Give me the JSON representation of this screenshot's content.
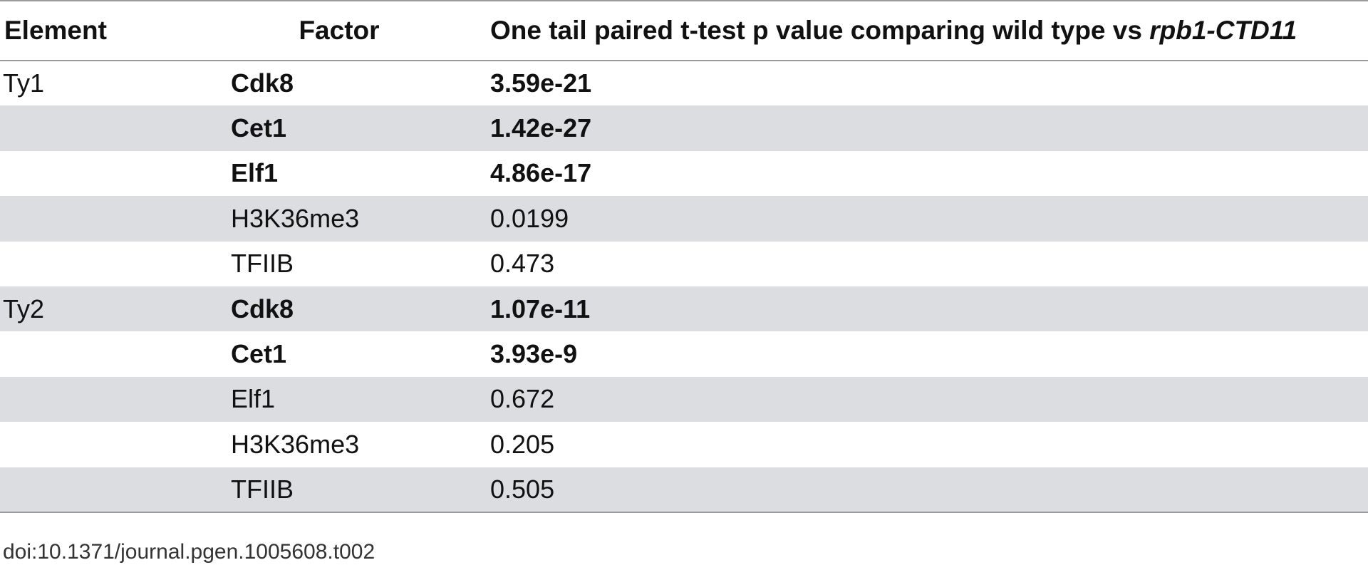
{
  "header": {
    "element": "Element",
    "factor": "Factor",
    "pvalue_prefix": "One tail paired t-test p value comparing wild type vs ",
    "pvalue_gene": "rpb1-CTD11"
  },
  "rows": [
    {
      "element": "Ty1",
      "factor": "Cdk8",
      "pvalue": "3.59e-21",
      "bold": true,
      "shaded": false
    },
    {
      "element": "",
      "factor": "Cet1",
      "pvalue": "1.42e-27",
      "bold": true,
      "shaded": true
    },
    {
      "element": "",
      "factor": "Elf1",
      "pvalue": "4.86e-17",
      "bold": true,
      "shaded": false
    },
    {
      "element": "",
      "factor": "H3K36me3",
      "pvalue": "0.0199",
      "bold": false,
      "shaded": true
    },
    {
      "element": "",
      "factor": "TFIIB",
      "pvalue": "0.473",
      "bold": false,
      "shaded": false
    },
    {
      "element": "Ty2",
      "factor": "Cdk8",
      "pvalue": "1.07e-11",
      "bold": true,
      "shaded": true
    },
    {
      "element": "",
      "factor": "Cet1",
      "pvalue": "3.93e-9",
      "bold": true,
      "shaded": false
    },
    {
      "element": "",
      "factor": "Elf1",
      "pvalue": "0.672",
      "bold": false,
      "shaded": true
    },
    {
      "element": "",
      "factor": "H3K36me3",
      "pvalue": "0.205",
      "bold": false,
      "shaded": false
    },
    {
      "element": "",
      "factor": "TFIIB",
      "pvalue": "0.505",
      "bold": false,
      "shaded": true
    }
  ],
  "footer": {
    "doi": "doi:10.1371/journal.pgen.1005608.t002"
  },
  "colors": {
    "shaded_row": "#dcdde0",
    "rule": "#9a9a9a"
  }
}
